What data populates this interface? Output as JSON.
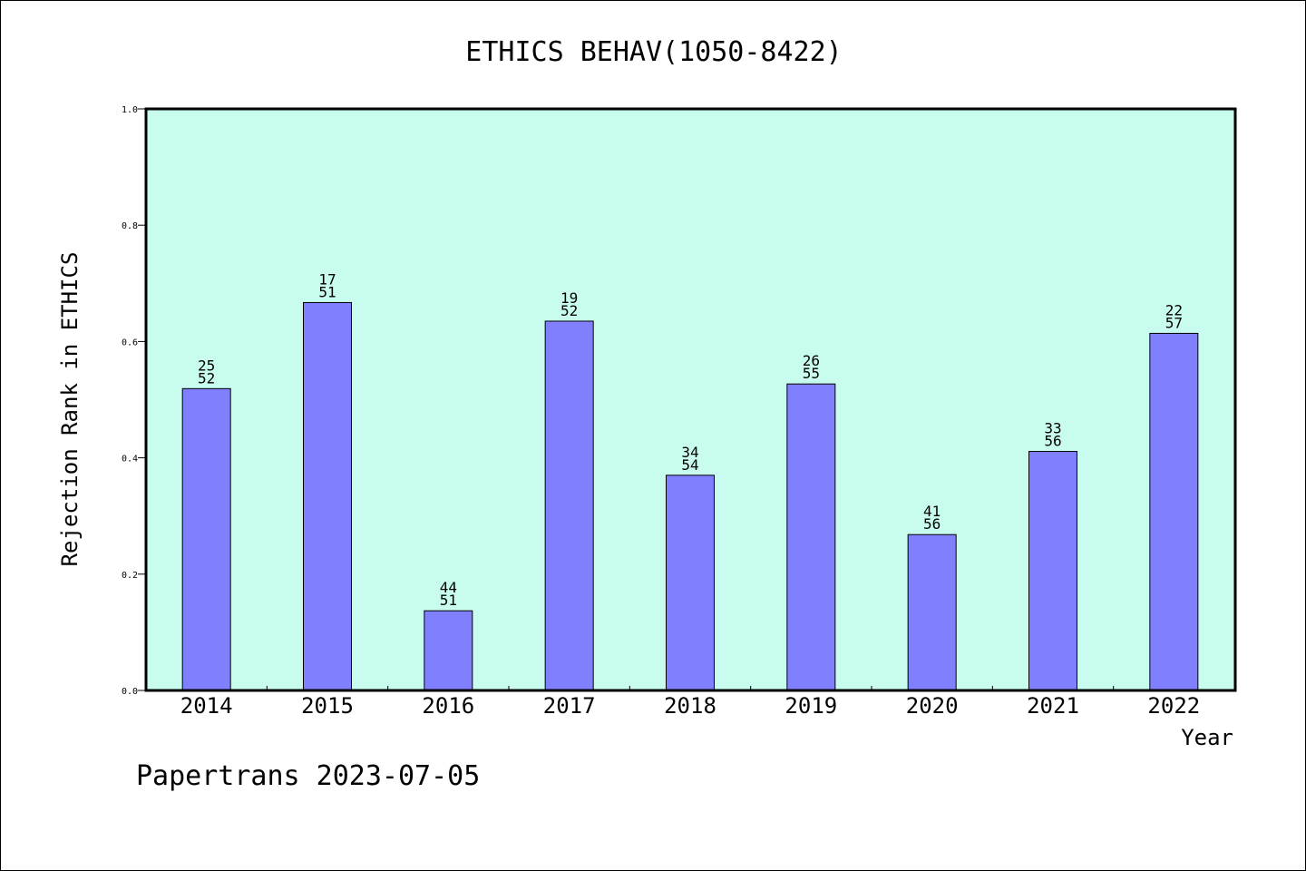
{
  "chart_data": {
    "type": "bar",
    "title": "ETHICS BEHAV(1050-8422)",
    "xlabel": "Year",
    "ylabel": "Rejection Rank in ETHICS",
    "ylim": [
      0,
      1.0
    ],
    "yticks": [
      "0.0",
      "0.2",
      "0.4",
      "0.6",
      "0.8",
      "1.0"
    ],
    "categories": [
      "2014",
      "2015",
      "2016",
      "2017",
      "2018",
      "2019",
      "2020",
      "2021",
      "2022"
    ],
    "values": [
      0.519,
      0.667,
      0.137,
      0.635,
      0.37,
      0.527,
      0.268,
      0.411,
      0.614
    ],
    "labels": [
      [
        "25",
        "52"
      ],
      [
        "17",
        "51"
      ],
      [
        "44",
        "51"
      ],
      [
        "19",
        "52"
      ],
      [
        "34",
        "54"
      ],
      [
        "26",
        "55"
      ],
      [
        "41",
        "56"
      ],
      [
        "33",
        "56"
      ],
      [
        "22",
        "57"
      ]
    ],
    "grid": false,
    "colors": {
      "plot_background": "#c8fcee",
      "bar_fill": "#8080ff",
      "bar_edge": "#000000"
    }
  },
  "footer": "Papertrans 2023-07-05"
}
